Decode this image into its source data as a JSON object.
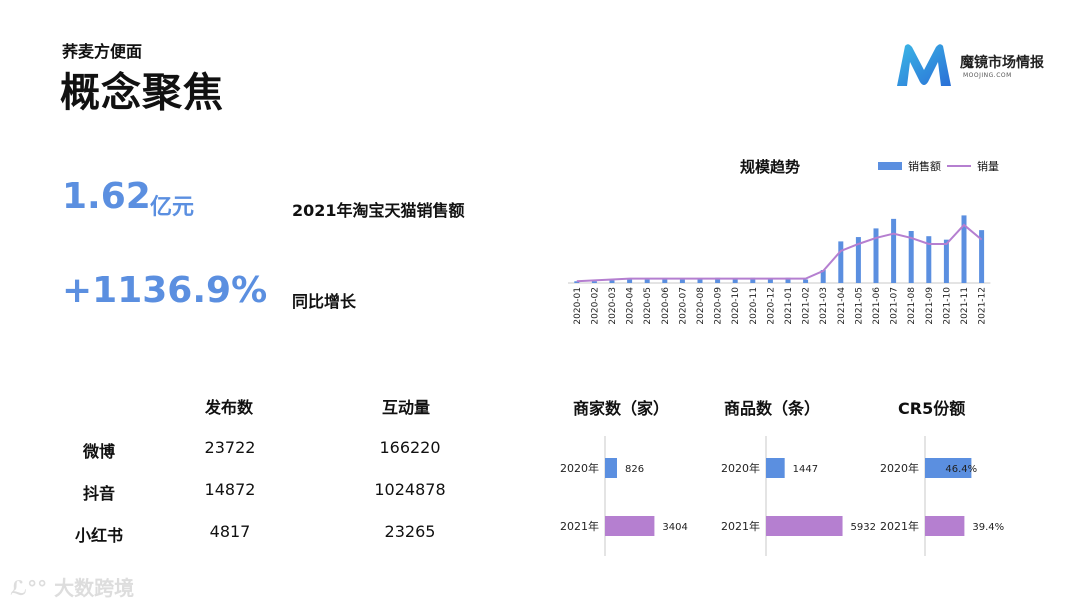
{
  "header": {
    "subtitle": "荞麦方便面",
    "title": "概念聚焦",
    "brand": "魔镜市场情报",
    "brand_sub": "MOOJING.COM"
  },
  "kpi": {
    "sales_value": "1.62",
    "sales_unit": "亿元",
    "sales_label": "2021年淘宝天猫销售额",
    "growth_value": "+1136.9%",
    "growth_label": "同比增长"
  },
  "trend": {
    "title": "规模趋势",
    "legend_bar": "销售额",
    "legend_line": "销量"
  },
  "social": {
    "headers": [
      "发布数",
      "互动量"
    ],
    "rows": [
      {
        "platform": "微博",
        "posts": "23722",
        "interactions": "166220"
      },
      {
        "platform": "抖音",
        "posts": "14872",
        "interactions": "1024878"
      },
      {
        "platform": "小红书",
        "posts": "4817",
        "interactions": "23265"
      }
    ]
  },
  "watermark": "大数跨境",
  "colors": {
    "accent": "#5b8fe0",
    "purple": "#b57fd0",
    "axis": "#c8c8c8"
  },
  "chart_data": [
    {
      "type": "bar",
      "title": "规模趋势",
      "categories": [
        "2020-01",
        "2020-02",
        "2020-03",
        "2020-04",
        "2020-05",
        "2020-06",
        "2020-07",
        "2020-08",
        "2020-09",
        "2020-10",
        "2020-11",
        "2020-12",
        "2021-01",
        "2021-02",
        "2021-03",
        "2021-04",
        "2021-05",
        "2021-06",
        "2021-07",
        "2021-08",
        "2021-09",
        "2021-10",
        "2021-11",
        "2021-12"
      ],
      "series": [
        {
          "name": "销售额",
          "kind": "bar",
          "values": [
            2,
            2,
            3,
            4,
            4,
            5,
            4,
            5,
            6,
            5,
            6,
            5,
            6,
            4,
            15,
            48,
            53,
            63,
            74,
            60,
            54,
            50,
            78,
            61
          ]
        },
        {
          "name": "销量",
          "kind": "line",
          "values": [
            2,
            3,
            4,
            5,
            5,
            5,
            5,
            5,
            5,
            5,
            5,
            5,
            5,
            5,
            14,
            37,
            45,
            52,
            57,
            52,
            45,
            45,
            67,
            50
          ]
        }
      ],
      "ylim": [
        0,
        90
      ]
    },
    {
      "type": "bar",
      "title": "商家数（家）",
      "categories": [
        "2020年",
        "2021年"
      ],
      "values": [
        826,
        3404
      ],
      "max": 6200
    },
    {
      "type": "bar",
      "title": "商品数（条）",
      "categories": [
        "2020年",
        "2021年"
      ],
      "values": [
        1447,
        5932
      ],
      "max": 6200
    },
    {
      "type": "bar",
      "title": "CR5份额",
      "categories": [
        "2020年",
        "2021年"
      ],
      "values": [
        46.4,
        39.4
      ],
      "labels": [
        "46.4%",
        "39.4%"
      ],
      "max": 70
    }
  ]
}
